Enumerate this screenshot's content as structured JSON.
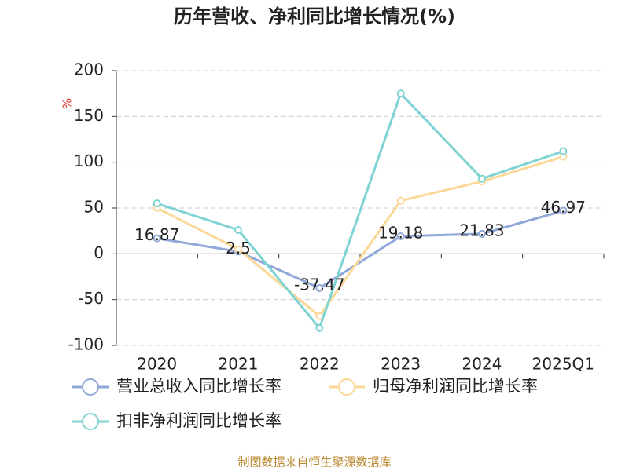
{
  "chart_data": {
    "type": "line",
    "title": "历年营收、净利同比增长情况(%)",
    "y_unit": "%",
    "categories": [
      "2020",
      "2021",
      "2022",
      "2023",
      "2024",
      "2025Q1"
    ],
    "series": [
      {
        "name": "营业总收入同比增长率",
        "color": "#8fa8d8",
        "values": [
          16.87,
          2.5,
          -37.47,
          19.18,
          21.83,
          46.97
        ],
        "show_labels": true
      },
      {
        "name": "归母净利润同比增长率",
        "color": "#fbd898",
        "values": [
          50,
          5,
          -68,
          58,
          79,
          106
        ],
        "show_labels": false
      },
      {
        "name": "扣非净利润同比增长率",
        "color": "#7fd3d3",
        "values": [
          55,
          26,
          -81,
          175,
          82,
          112
        ],
        "show_labels": false
      }
    ],
    "ylim": [
      -100,
      200
    ],
    "yticks": [
      -100,
      -50,
      0,
      50,
      100,
      150,
      200
    ],
    "grid": true,
    "source": "制图数据来自恒生聚源数据库"
  }
}
